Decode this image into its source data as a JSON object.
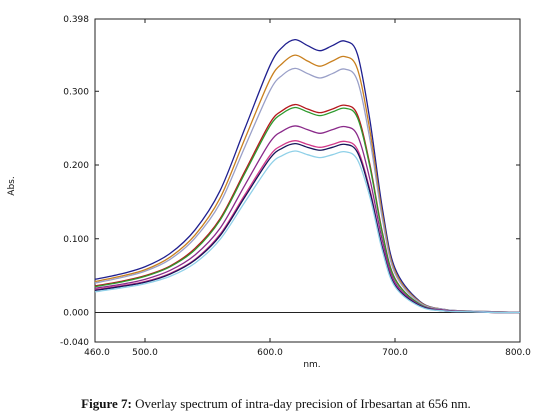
{
  "chart_data": {
    "type": "line",
    "title": "",
    "xlabel": "nm.",
    "ylabel": "Abs.",
    "xlim": [
      460.0,
      800.0
    ],
    "ylim": [
      -0.04,
      0.398
    ],
    "x_ticks": [
      "460.0",
      "500.0",
      "600.0",
      "700.0",
      "800.0"
    ],
    "x_tick_values": [
      460,
      500,
      600,
      700,
      800
    ],
    "y_ticks": [
      "0.398",
      "0.300",
      "0.200",
      "0.100",
      "0.000",
      "-0.040"
    ],
    "y_tick_values": [
      0.398,
      0.3,
      0.2,
      0.1,
      0.0,
      -0.04
    ],
    "zero_line": true,
    "grid": false,
    "legend": "none",
    "x": [
      460,
      480,
      500,
      520,
      540,
      560,
      580,
      600,
      610,
      620,
      630,
      640,
      650,
      660,
      670,
      680,
      690,
      700,
      720,
      740,
      760,
      780,
      800
    ],
    "series": [
      {
        "color": "#1f1f8f",
        "values": [
          0.045,
          0.052,
          0.062,
          0.08,
          0.112,
          0.165,
          0.25,
          0.335,
          0.36,
          0.37,
          0.362,
          0.355,
          0.362,
          0.368,
          0.35,
          0.26,
          0.14,
          0.06,
          0.015,
          0.004,
          0.002,
          0.001,
          0.0
        ]
      },
      {
        "color": "#c9801f",
        "values": [
          0.042,
          0.049,
          0.058,
          0.075,
          0.105,
          0.155,
          0.236,
          0.316,
          0.338,
          0.349,
          0.341,
          0.334,
          0.341,
          0.347,
          0.33,
          0.246,
          0.132,
          0.056,
          0.014,
          0.004,
          0.002,
          0.001,
          0.0
        ]
      },
      {
        "color": "#9aa0c8",
        "values": [
          0.04,
          0.047,
          0.056,
          0.072,
          0.101,
          0.148,
          0.225,
          0.301,
          0.322,
          0.331,
          0.324,
          0.318,
          0.324,
          0.33,
          0.314,
          0.234,
          0.126,
          0.053,
          0.013,
          0.004,
          0.002,
          0.001,
          0.0
        ]
      },
      {
        "color": "#b5181d",
        "values": [
          0.036,
          0.042,
          0.05,
          0.063,
          0.087,
          0.127,
          0.192,
          0.257,
          0.274,
          0.282,
          0.276,
          0.271,
          0.276,
          0.281,
          0.268,
          0.2,
          0.108,
          0.046,
          0.011,
          0.003,
          0.001,
          0.0,
          0.0
        ]
      },
      {
        "color": "#2e9a2e",
        "values": [
          0.035,
          0.041,
          0.049,
          0.062,
          0.085,
          0.125,
          0.189,
          0.253,
          0.27,
          0.278,
          0.272,
          0.267,
          0.272,
          0.277,
          0.264,
          0.197,
          0.106,
          0.045,
          0.011,
          0.003,
          0.001,
          0.0,
          0.0
        ]
      },
      {
        "color": "#8a2a8a",
        "values": [
          0.033,
          0.038,
          0.045,
          0.057,
          0.078,
          0.114,
          0.173,
          0.231,
          0.246,
          0.253,
          0.248,
          0.243,
          0.248,
          0.252,
          0.24,
          0.18,
          0.097,
          0.041,
          0.01,
          0.003,
          0.001,
          0.0,
          0.0
        ]
      },
      {
        "color": "#d23a8a",
        "values": [
          0.031,
          0.036,
          0.042,
          0.053,
          0.072,
          0.106,
          0.16,
          0.213,
          0.227,
          0.233,
          0.228,
          0.224,
          0.228,
          0.232,
          0.221,
          0.166,
          0.089,
          0.038,
          0.009,
          0.002,
          0.001,
          0.0,
          0.0
        ]
      },
      {
        "color": "#15155a",
        "values": [
          0.03,
          0.035,
          0.041,
          0.052,
          0.071,
          0.104,
          0.157,
          0.209,
          0.223,
          0.229,
          0.224,
          0.22,
          0.224,
          0.228,
          0.217,
          0.163,
          0.087,
          0.037,
          0.009,
          0.002,
          0.001,
          0.0,
          0.0
        ]
      },
      {
        "color": "#8fd0e8",
        "values": [
          0.028,
          0.033,
          0.039,
          0.049,
          0.067,
          0.099,
          0.15,
          0.2,
          0.213,
          0.219,
          0.214,
          0.21,
          0.214,
          0.218,
          0.207,
          0.156,
          0.083,
          0.035,
          0.008,
          0.002,
          0.001,
          0.0,
          0.0
        ]
      }
    ]
  },
  "caption": {
    "label": "Figure 7:",
    "text": " Overlay spectrum of intra-day precision of Irbesartan at 656 nm."
  }
}
